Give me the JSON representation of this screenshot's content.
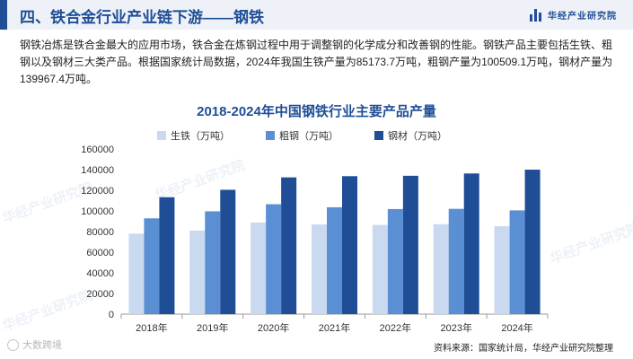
{
  "header": {
    "title": "四、铁合金行业产业链下游——钢铁"
  },
  "logo": {
    "text": "华经产业研究院"
  },
  "intro": {
    "text": "钢铁冶炼是铁合金最大的应用市场，铁合金在炼钢过程中用于调整钢的化学成分和改善钢的性能。钢铁产品主要包括生铁、粗钢以及钢材三大类产品。根据国家统计局数据，2024年我国生铁产量为85173.7万吨，粗钢产量为100509.1万吨，钢材产量为139967.4万吨。"
  },
  "watermarks": [
    "华经产业研究院",
    "华经产业研究院",
    "华经产业研究院",
    "华经产业研究院"
  ],
  "colors": {
    "pig_iron": "#c9d9ef",
    "crude_steel": "#5b8fd4",
    "steel": "#1f4e96",
    "accent": "#1f4e96"
  },
  "chart_data": {
    "type": "bar",
    "title": "2018-2024年中国钢铁行业主要产品产量",
    "xlabel": "",
    "ylabel": "",
    "categories": [
      "2018年",
      "2019年",
      "2020年",
      "2021年",
      "2022年",
      "2023年",
      "2024年"
    ],
    "ylim": [
      0,
      160000
    ],
    "yticks": [
      "0",
      "20000",
      "40000",
      "60000",
      "80000",
      "100000",
      "120000",
      "140000",
      "160000"
    ],
    "grid": false,
    "legend_position": "top",
    "series": [
      {
        "name": "生铁（万吨）",
        "values": [
          77988,
          80937,
          88752,
          86857,
          86383,
          87101,
          85174
        ]
      },
      {
        "name": "粗钢（万吨）",
        "values": [
          92826,
          99634,
          106477,
          103524,
          101796,
          102014,
          100509
        ]
      },
      {
        "name": "钢材（万吨）",
        "values": [
          113287,
          120456,
          132489,
          133667,
          134034,
          136268,
          139967
        ]
      }
    ]
  },
  "source": {
    "text": "资料来源：国家统计局，华经产业研究院整理"
  },
  "corner_badge": {
    "text": "大数跨境"
  }
}
